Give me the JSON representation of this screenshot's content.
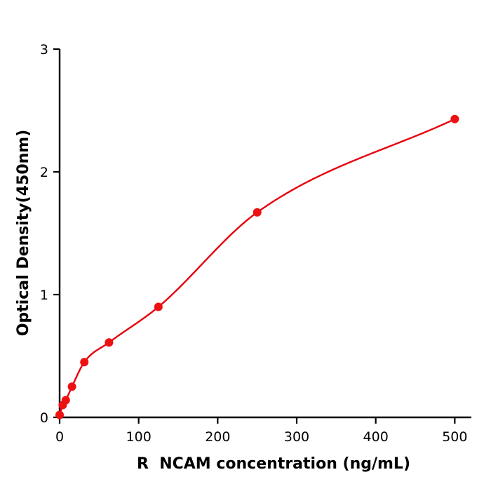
{
  "chart_data": {
    "type": "scatter",
    "title": "",
    "xlabel": "R  NCAM concentration (ng/mL)",
    "ylabel": "Optical Density(450nm)",
    "x": [
      0,
      3.9,
      7.8,
      15.6,
      31.25,
      62.5,
      125,
      250,
      500
    ],
    "y": [
      0.02,
      0.1,
      0.14,
      0.25,
      0.45,
      0.61,
      0.9,
      1.67,
      2.43
    ],
    "x_ticks": [
      0,
      100,
      200,
      300,
      400,
      500
    ],
    "y_ticks": [
      0,
      1,
      2,
      3
    ],
    "xlim": [
      0,
      521
    ],
    "ylim": [
      0,
      3
    ],
    "grid": false,
    "legend": null,
    "marker": "circle",
    "fit": "smooth saturating standard curve through points",
    "point_color": "#ee1111",
    "line_color": "#e8000d",
    "axis_color": "#000000",
    "background_color": "#ffffff"
  }
}
